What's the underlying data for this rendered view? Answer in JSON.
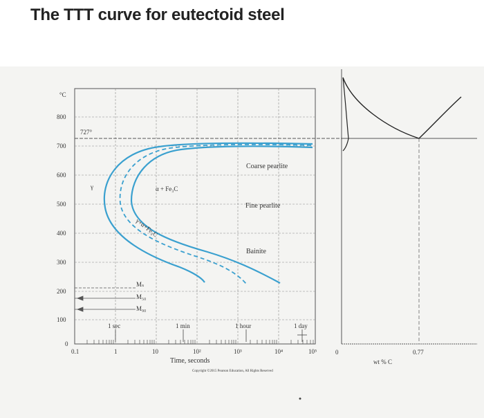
{
  "title": "The TTT curve for eutectoid steel",
  "y_axis": {
    "unit": "°C",
    "ticks": [
      "800",
      "700",
      "600",
      "500",
      "400",
      "300",
      "200",
      "100",
      "0"
    ]
  },
  "x_axis": {
    "label": "Time, seconds",
    "ticks": [
      "0.1",
      "1",
      "10",
      "10²",
      "10³",
      "10⁴",
      "10⁵"
    ],
    "time_markers": [
      "1 sec",
      "1 min",
      "1 hour",
      "1 day"
    ]
  },
  "labels": {
    "eutectoid_temp": "727°",
    "austenite": "γ",
    "alpha_fe3c": "α + Fe₃C",
    "gamma_alpha_fe3c": "γ+α+Fe₃C",
    "coarse_pearlite": "Coarse pearlite",
    "fine_pearlite": "Fine pearlite",
    "bainite": "Bainite",
    "ms": "Mₛ",
    "m50": "M₅₀",
    "m90": "M₉₀"
  },
  "phase_diagram": {
    "x_ticks": [
      "0",
      "0.77"
    ],
    "x_label": "wt % C"
  },
  "copyright": "Copyright ©2015 Pearson Education, All Rights Reserved",
  "colors": {
    "curve": "#3aa0cf",
    "axis": "#333333",
    "dash": "#777777"
  }
}
